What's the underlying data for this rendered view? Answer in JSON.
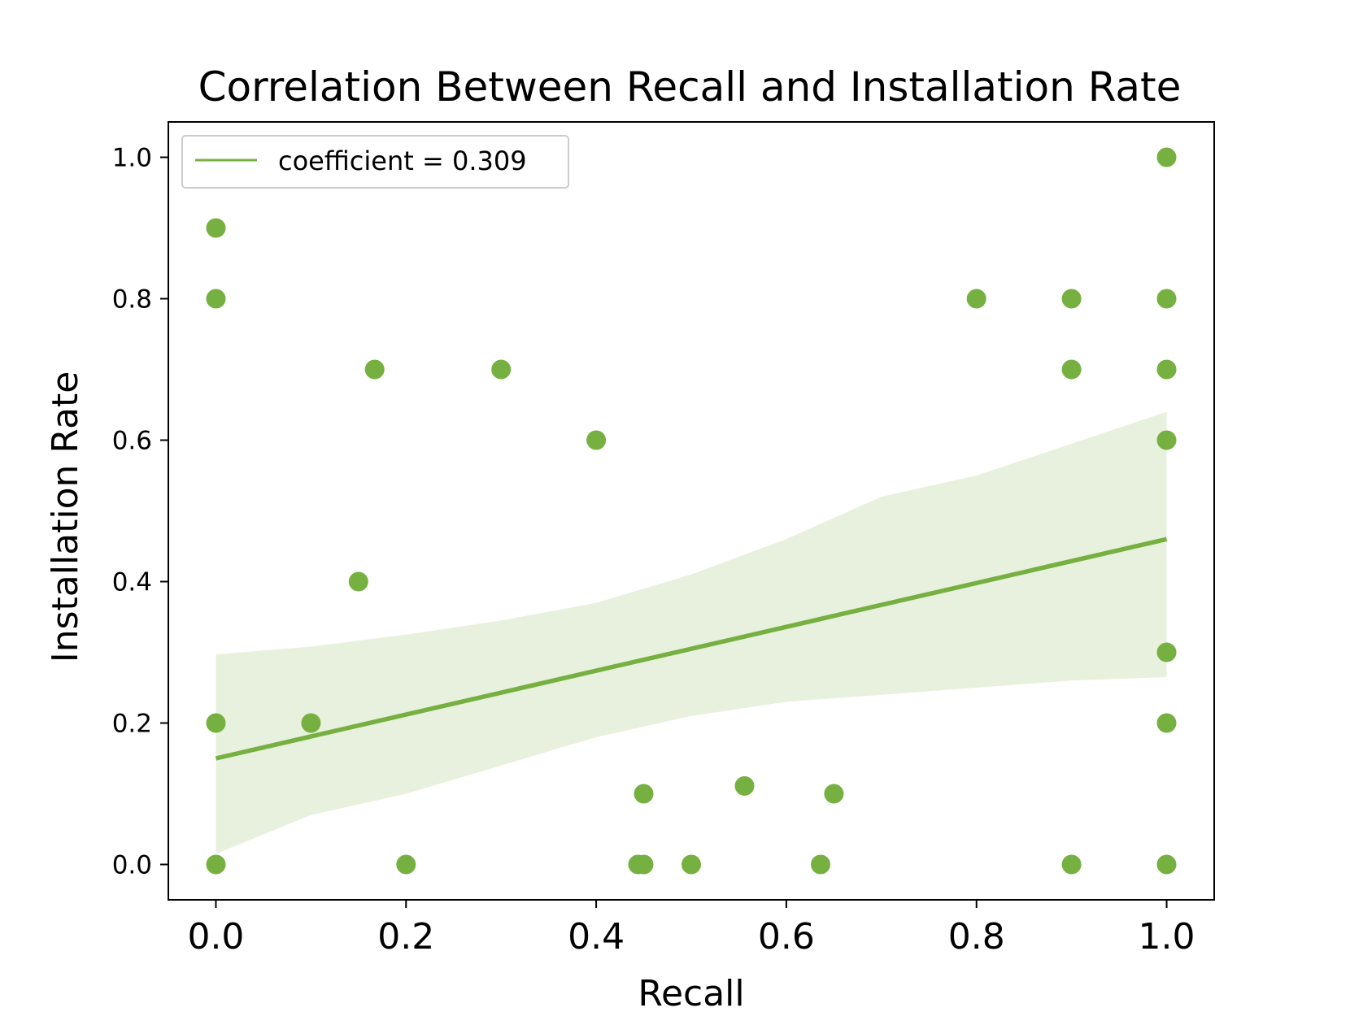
{
  "chart_data": {
    "type": "scatter",
    "title": "Correlation Between Recall and Installation Rate",
    "xlabel": "Recall",
    "ylabel": "Installation Rate",
    "xlim": [
      -0.05,
      1.05
    ],
    "ylim": [
      -0.05,
      1.05
    ],
    "xticks": [
      "0.0",
      "0.2",
      "0.4",
      "0.6",
      "0.8",
      "1.0"
    ],
    "yticks": [
      "0.0",
      "0.2",
      "0.4",
      "0.6",
      "0.8",
      "1.0"
    ],
    "grid": false,
    "legend": {
      "placement": "upper-left",
      "entries": [
        "coefficient = 0.309"
      ]
    },
    "colors": {
      "points": "#76b041",
      "line": "#76b041",
      "band": "#e8f1dd"
    },
    "series": [
      {
        "points": [
          {
            "x": 0.0,
            "y": 0.9
          },
          {
            "x": 0.0,
            "y": 0.8
          },
          {
            "x": 0.0,
            "y": 0.2
          },
          {
            "x": 0.0,
            "y": 0.0
          },
          {
            "x": 0.1,
            "y": 0.2
          },
          {
            "x": 0.15,
            "y": 0.4
          },
          {
            "x": 0.167,
            "y": 0.7
          },
          {
            "x": 0.2,
            "y": 0.0
          },
          {
            "x": 0.3,
            "y": 0.7
          },
          {
            "x": 0.4,
            "y": 0.6
          },
          {
            "x": 0.444,
            "y": 0.0
          },
          {
            "x": 0.45,
            "y": 0.0
          },
          {
            "x": 0.45,
            "y": 0.1
          },
          {
            "x": 0.5,
            "y": 0.0
          },
          {
            "x": 0.556,
            "y": 0.111
          },
          {
            "x": 0.636,
            "y": 0.0
          },
          {
            "x": 0.65,
            "y": 0.1
          },
          {
            "x": 0.8,
            "y": 0.8
          },
          {
            "x": 0.9,
            "y": 0.8
          },
          {
            "x": 0.9,
            "y": 0.7
          },
          {
            "x": 0.9,
            "y": 0.0
          },
          {
            "x": 1.0,
            "y": 1.0
          },
          {
            "x": 1.0,
            "y": 0.8
          },
          {
            "x": 1.0,
            "y": 0.7
          },
          {
            "x": 1.0,
            "y": 0.6
          },
          {
            "x": 1.0,
            "y": 0.3
          },
          {
            "x": 1.0,
            "y": 0.2
          },
          {
            "x": 1.0,
            "y": 0.0
          }
        ]
      }
    ],
    "regression": {
      "x": [
        0.0,
        1.0
      ],
      "y": [
        0.15,
        0.46
      ],
      "ci_x": [
        0.0,
        0.1,
        0.2,
        0.3,
        0.4,
        0.5,
        0.6,
        0.7,
        0.8,
        0.9,
        1.0
      ],
      "ci_upper": [
        0.297,
        0.308,
        0.325,
        0.345,
        0.37,
        0.41,
        0.46,
        0.52,
        0.55,
        0.595,
        0.64
      ],
      "ci_lower": [
        0.015,
        0.07,
        0.1,
        0.14,
        0.18,
        0.21,
        0.23,
        0.24,
        0.25,
        0.26,
        0.265
      ]
    }
  }
}
